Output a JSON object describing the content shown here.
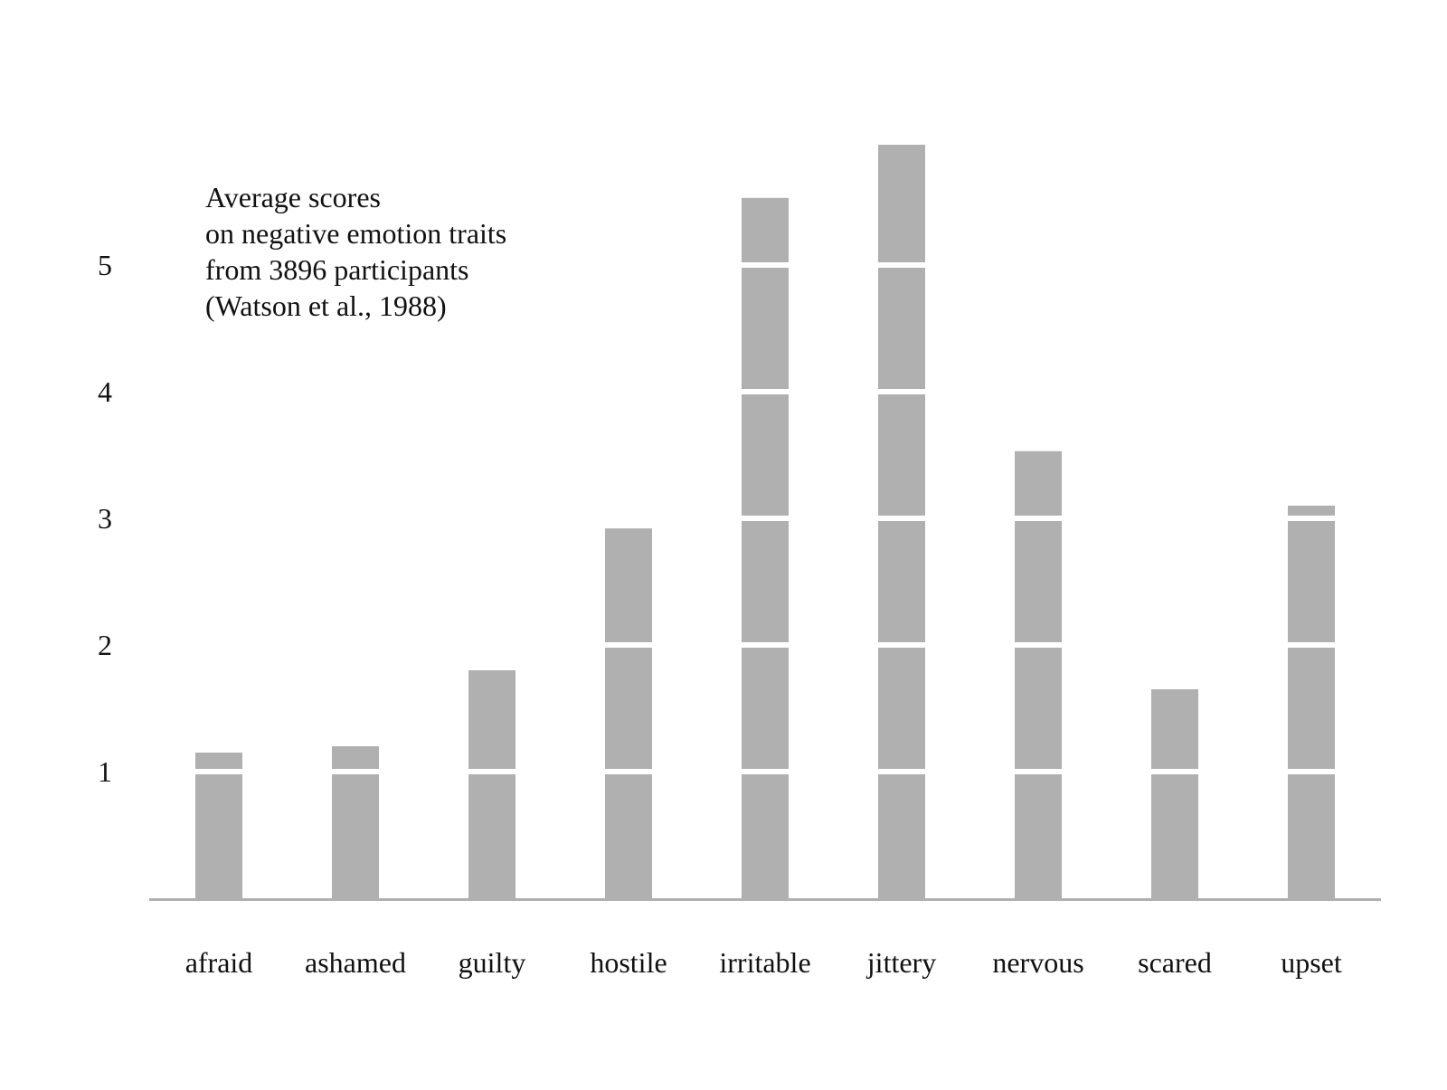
{
  "chart_data": {
    "type": "bar",
    "title_lines": [
      "Average scores",
      "on negative emotion traits",
      "from 3896 participants",
      "(Watson et al., 1988)"
    ],
    "categories": [
      "afraid",
      "ashamed",
      "guilty",
      "hostile",
      "irritable",
      "jittery",
      "nervous",
      "scared",
      "upset"
    ],
    "values": [
      1.15,
      1.2,
      1.8,
      2.92,
      5.53,
      5.95,
      3.53,
      1.65,
      3.1
    ],
    "y_ticks": [
      1,
      2,
      3,
      4,
      5
    ],
    "ylim": [
      0,
      6
    ],
    "grid": false,
    "legend": "none",
    "colors": {
      "bar": "#b0b0b0",
      "unit_separator": "#ffffff",
      "axis": "#b0b0b0",
      "text": "#111111"
    }
  }
}
